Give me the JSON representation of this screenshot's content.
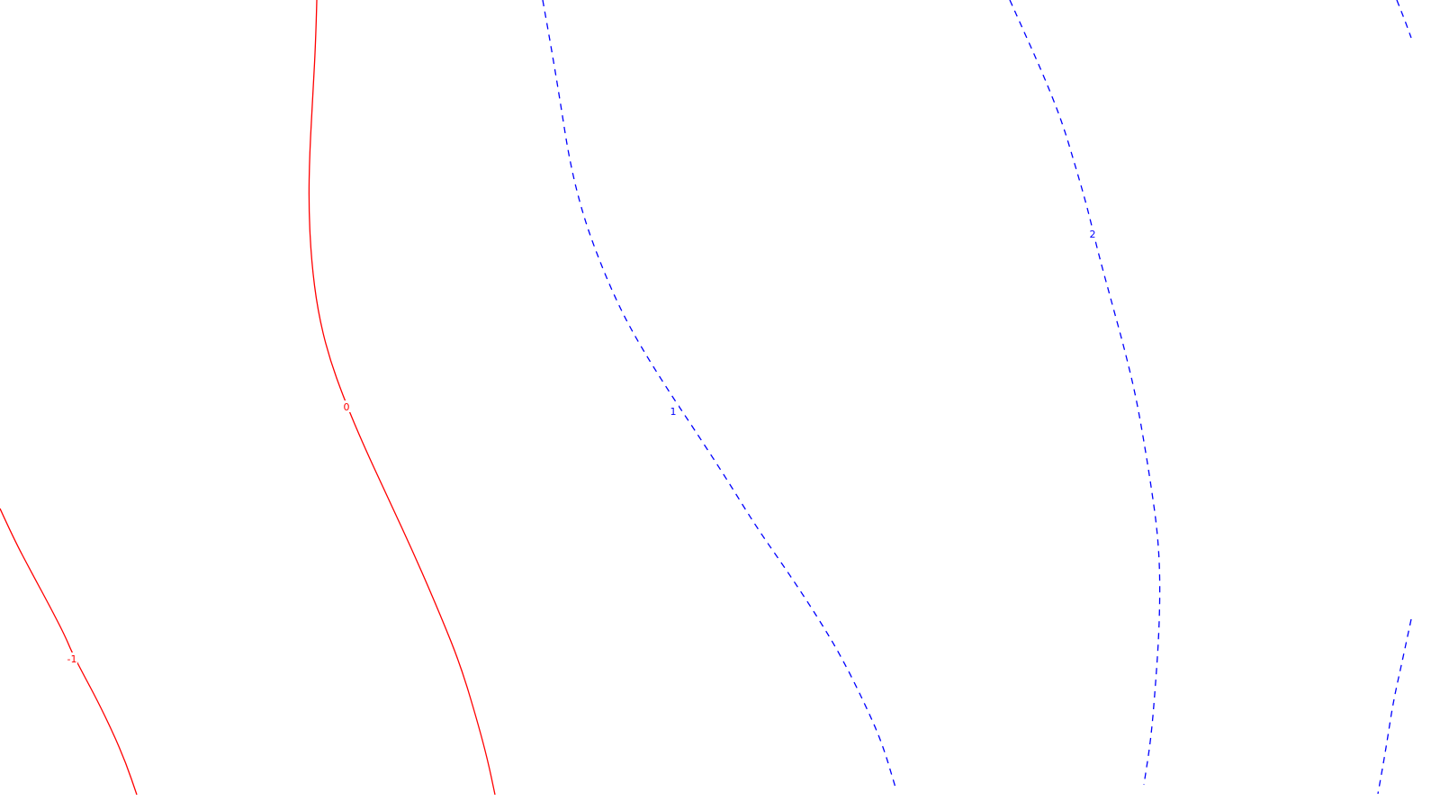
{
  "chart_data": {
    "type": "contour",
    "title": "",
    "xlabel": "",
    "ylabel": "",
    "grid": false,
    "legend": "none",
    "colors": {
      "negative": "#ff0000",
      "positive": "#0000ff"
    },
    "contours": [
      {
        "level": -1,
        "label": "-1",
        "sign": "negative",
        "style": "solid"
      },
      {
        "level": 0,
        "label": "0",
        "sign": "negative",
        "style": "solid"
      },
      {
        "level": 1,
        "label": "1",
        "sign": "positive",
        "style": "dashed"
      },
      {
        "level": 2,
        "label": "2",
        "sign": "positive",
        "style": "dashed"
      },
      {
        "level": 3,
        "label": "",
        "sign": "positive",
        "style": "dashed"
      }
    ]
  }
}
